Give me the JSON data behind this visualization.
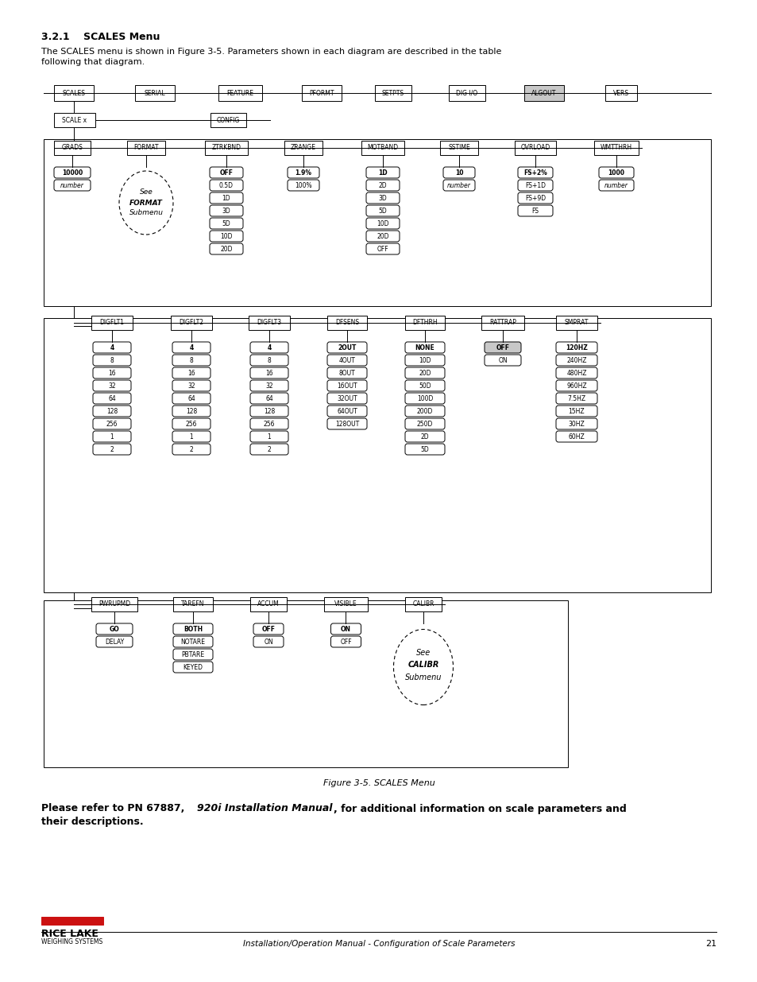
{
  "title_section": "3.2.1    SCALES Menu",
  "body_text_1": "The SCALES menu is shown in Figure 3-5. Parameters shown in each diagram are described in the table",
  "body_text_2": "following that diagram.",
  "figure_caption": "Figure 3-5. SCALES Menu",
  "footer_text": "Installation/Operation Manual - Configuration of Scale Parameters",
  "footer_page": "21",
  "bg_color": "#ffffff",
  "algout_fill": "#c8c8c8",
  "row1_items": [
    "SCALES",
    "SERIAL",
    "FEATURE",
    "PFORMT",
    "SETPTS",
    "DIG I/O",
    "ALGOUT",
    "VERS"
  ],
  "row2_items": [
    "SCALE x",
    "CONFIG"
  ],
  "row3_items": [
    "GRADS",
    "FORMAT",
    "ZTRKBND",
    "ZRANGE",
    "MOTBAND",
    "SSTIME",
    "OVRLOAD",
    "WMTTHRH"
  ],
  "ztrkbnd_values": [
    "OFF",
    "0.5D",
    "1D",
    "3D",
    "5D",
    "10D",
    "20D"
  ],
  "zrange_values": [
    "1.9%",
    "100%"
  ],
  "motband_values": [
    "1D",
    "2D",
    "3D",
    "5D",
    "10D",
    "20D",
    "OFF"
  ],
  "sstime_values": [
    "10",
    "number"
  ],
  "ovrload_values": [
    "FS+2%",
    "FS+1D",
    "FS+9D",
    "FS"
  ],
  "wmtthrh_values": [
    "1000",
    "number"
  ],
  "row4_items": [
    "DIGFLT1",
    "DIGFLT2",
    "DIGFLT3",
    "DFSENS",
    "DFTHRH",
    "RATTRAP",
    "SMPRAT"
  ],
  "digflt_values": [
    "4",
    "8",
    "16",
    "32",
    "64",
    "128",
    "256",
    "1",
    "2"
  ],
  "dfsens_values": [
    "2OUT",
    "4OUT",
    "8OUT",
    "16OUT",
    "32OUT",
    "64OUT",
    "128OUT"
  ],
  "dfthrh_values": [
    "NONE",
    "10D",
    "20D",
    "50D",
    "100D",
    "200D",
    "250D",
    "2D",
    "5D"
  ],
  "rattrap_values": [
    "OFF",
    "ON"
  ],
  "smprat_values": [
    "120HZ",
    "240HZ",
    "480HZ",
    "960HZ",
    "7.5HZ",
    "15HZ",
    "30HZ",
    "60HZ"
  ],
  "row5_items": [
    "PWRUPMD",
    "TAREFN",
    "ACCUM",
    "VISIBLE",
    "CALIBR"
  ],
  "pwrupmd_values": [
    "GO",
    "DELAY"
  ],
  "tarefn_values": [
    "BOTH",
    "NOTARE",
    "PBTARE",
    "KEYED"
  ],
  "accum_values": [
    "OFF",
    "ON"
  ],
  "visible_values": [
    "ON",
    "OFF"
  ]
}
